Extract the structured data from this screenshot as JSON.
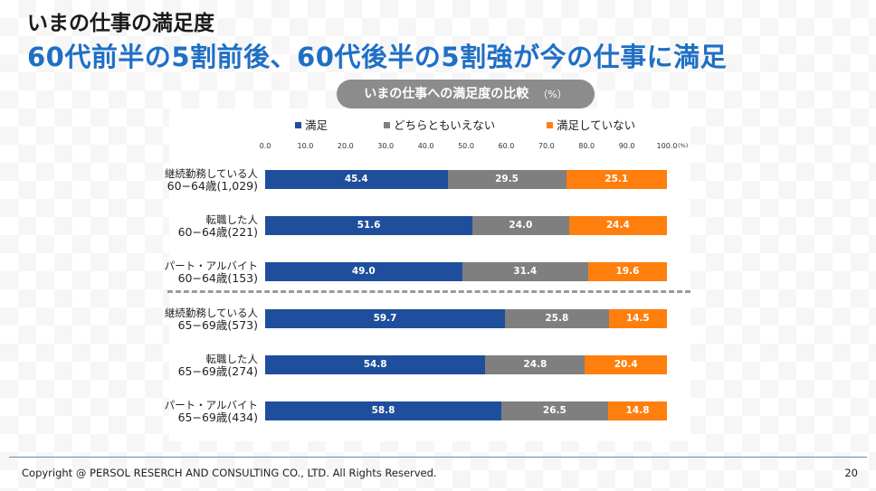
{
  "header": {
    "title": "いまの仕事の満足度",
    "subtitle": "60代前半の5割前後、60代後半の5割強が今の仕事に満足"
  },
  "chart_title": {
    "text": "いまの仕事への満足度の比較",
    "unit": "（%）"
  },
  "chart_data": {
    "type": "bar",
    "orientation": "horizontal",
    "stacked": true,
    "xlim": [
      0,
      100
    ],
    "x_ticks": [
      "0.0",
      "10.0",
      "20.0",
      "30.0",
      "40.0",
      "50.0",
      "60.0",
      "70.0",
      "80.0",
      "90.0",
      "100.0"
    ],
    "x_unit": "(%)",
    "legend_position": "top",
    "categories": [
      {
        "line1": "継続勤務している人",
        "line2": "60−64歳(1,029)"
      },
      {
        "line1": "転職した人",
        "line2": "60−64歳(221)"
      },
      {
        "line1": "パート・アルバイト",
        "line2": "60−64歳(153)"
      },
      {
        "line1": "継続勤務している人",
        "line2": "65−69歳(573)"
      },
      {
        "line1": "転職した人",
        "line2": "65−69歳(274)"
      },
      {
        "line1": "パート・アルバイト",
        "line2": "65−69歳(434)"
      }
    ],
    "series": [
      {
        "name": "満足",
        "color": "#1f4e9c",
        "values": [
          45.4,
          51.6,
          49.0,
          59.7,
          54.8,
          58.8
        ],
        "labels": [
          "45.4",
          "51.6",
          "49.0",
          "59.7",
          "54.8",
          "58.8"
        ]
      },
      {
        "name": "どちらともいえない",
        "color": "#7f7f7f",
        "values": [
          29.5,
          24.0,
          31.4,
          25.8,
          24.8,
          26.5
        ],
        "labels": [
          "29.5",
          "24.0",
          "31.4",
          "25.8",
          "24.8",
          "26.5"
        ]
      },
      {
        "name": "満足していない",
        "color": "#ff7f0e",
        "values": [
          25.1,
          24.4,
          19.6,
          14.5,
          20.4,
          14.8
        ],
        "labels": [
          "25.1",
          "24.4",
          "19.6",
          "14.5",
          "20.4",
          "14.8"
        ]
      }
    ]
  },
  "footer": {
    "copyright": "Copyright @ PERSOL RESERCH AND CONSULTING CO., LTD. All Rights Reserved.",
    "page_number": "20"
  }
}
